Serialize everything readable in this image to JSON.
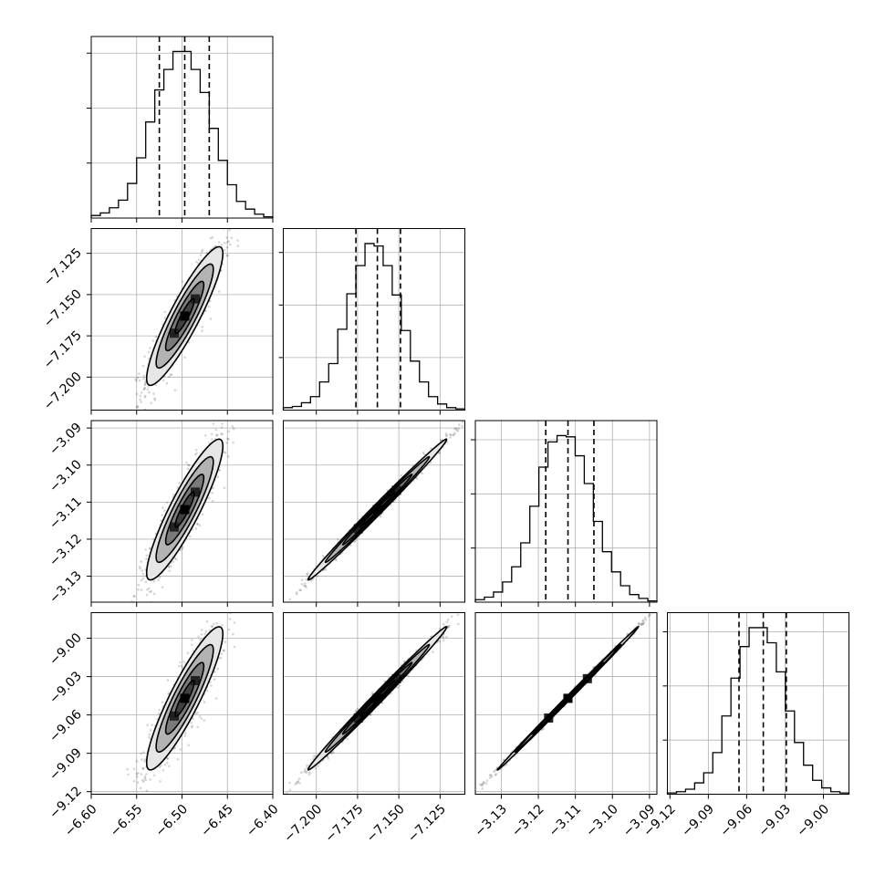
{
  "chart_data": {
    "type": "corner",
    "dimensions": 4,
    "parameters": [
      {
        "range": [
          -6.6,
          -6.4
        ],
        "ticks": [
          -6.6,
          -6.55,
          -6.5,
          -6.45,
          -6.4
        ],
        "tick_labels": [
          "−6.60",
          "−6.55",
          "−6.50",
          "−6.45",
          "−6.40"
        ],
        "quantiles": [
          -6.525,
          -6.497,
          -6.47
        ],
        "hist_counts": [
          2,
          4,
          8,
          14,
          27,
          47,
          75,
          100,
          116,
          130,
          130,
          116,
          98,
          70,
          45,
          26,
          13,
          7,
          3,
          1
        ]
      },
      {
        "range": [
          -7.22,
          -7.11
        ],
        "ticks": [
          -7.2,
          -7.175,
          -7.15,
          -7.125
        ],
        "tick_labels": [
          "−7.200",
          "−7.175",
          "−7.150",
          "−7.125"
        ],
        "quantiles": [
          -7.176,
          -7.163,
          -7.149
        ],
        "hist_counts": [
          2,
          3,
          6,
          11,
          23,
          38,
          66,
          95,
          118,
          136,
          134,
          118,
          94,
          65,
          40,
          23,
          11,
          5,
          2,
          1
        ]
      },
      {
        "range": [
          -3.137,
          -3.088
        ],
        "ticks": [
          -3.13,
          -3.12,
          -3.11,
          -3.1,
          -3.09
        ],
        "tick_labels": [
          "−3.13",
          "−3.12",
          "−3.11",
          "−3.10",
          "−3.09"
        ],
        "quantiles": [
          -3.118,
          -3.112,
          -3.105
        ],
        "hist_counts": [
          2,
          4,
          8,
          16,
          28,
          47,
          76,
          107,
          127,
          132,
          131,
          116,
          94,
          64,
          40,
          24,
          13,
          6,
          3,
          1
        ]
      },
      {
        "range": [
          -9.122,
          -8.98
        ],
        "ticks": [
          -9.12,
          -9.09,
          -9.06,
          -9.03,
          -9.0
        ],
        "tick_labels": [
          "−9.12",
          "−9.09",
          "−9.06",
          "−9.03",
          "−9.00"
        ],
        "quantiles": [
          -9.066,
          -9.047,
          -9.029
        ],
        "hist_counts": [
          1,
          2,
          4,
          9,
          17,
          33,
          62,
          92,
          117,
          132,
          132,
          120,
          97,
          66,
          41,
          23,
          11,
          5,
          2,
          1
        ]
      }
    ],
    "samples_model": {
      "means": [
        -6.497,
        -7.163,
        -3.112,
        -9.047
      ],
      "stds": [
        0.021,
        0.021,
        0.0095,
        0.028
      ],
      "correlations": [
        [
          1.0,
          0.9,
          0.9,
          0.9
        ],
        [
          0.9,
          1.0,
          0.995,
          0.995
        ],
        [
          0.9,
          0.995,
          1.0,
          0.999
        ],
        [
          0.9,
          0.995,
          0.999,
          1.0
        ]
      ]
    },
    "contour_levels_sigma": [
      0.5,
      1.0,
      1.5,
      2.0
    ],
    "grid": true,
    "axis_labels": [
      "",
      "",
      "",
      ""
    ]
  }
}
